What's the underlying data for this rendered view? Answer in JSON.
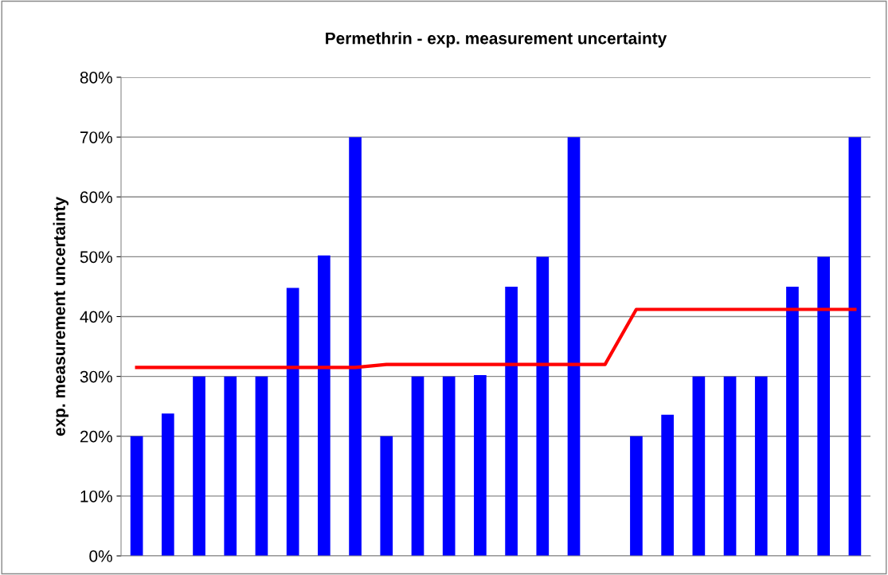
{
  "chart_data": {
    "type": "bar",
    "title": "Permethrin - exp. measurement uncertainty",
    "ylabel": "exp. measurement uncertainty",
    "categories": [
      null,
      null,
      null,
      null,
      null,
      null,
      null,
      null,
      null,
      null,
      null,
      null,
      null,
      null,
      null,
      null,
      null,
      null,
      null,
      null,
      null,
      null,
      null,
      null
    ],
    "series": [
      {
        "color": "#0000ff",
        "values": [
          20,
          23.8,
          30,
          30,
          30,
          44.8,
          50.2,
          70,
          20,
          30,
          30,
          30.2,
          45,
          50,
          70,
          null,
          20,
          23.6,
          30,
          30,
          30,
          45,
          50,
          70
        ]
      },
      {
        "type": "line",
        "color": "#ff0000",
        "values": [
          31.5,
          31.5,
          31.5,
          31.5,
          31.5,
          31.5,
          31.5,
          31.5,
          32,
          32,
          32,
          32,
          32,
          32,
          32,
          32,
          41.2,
          41.2,
          41.2,
          41.2,
          41.2,
          41.2,
          41.2,
          41.2
        ]
      }
    ],
    "ylim": [
      0,
      80
    ],
    "yticks": [
      {
        "value": 0,
        "label": "0%"
      },
      {
        "value": 10,
        "label": "10%"
      },
      {
        "value": 20,
        "label": "20%"
      },
      {
        "value": 30,
        "label": "30%"
      },
      {
        "value": 40,
        "label": "40%"
      },
      {
        "value": 50,
        "label": "50%"
      },
      {
        "value": 60,
        "label": "60%"
      },
      {
        "value": 70,
        "label": "70%"
      },
      {
        "value": 80,
        "label": "80%"
      }
    ],
    "grid": "y",
    "tick_labels": "y",
    "legend": false
  }
}
